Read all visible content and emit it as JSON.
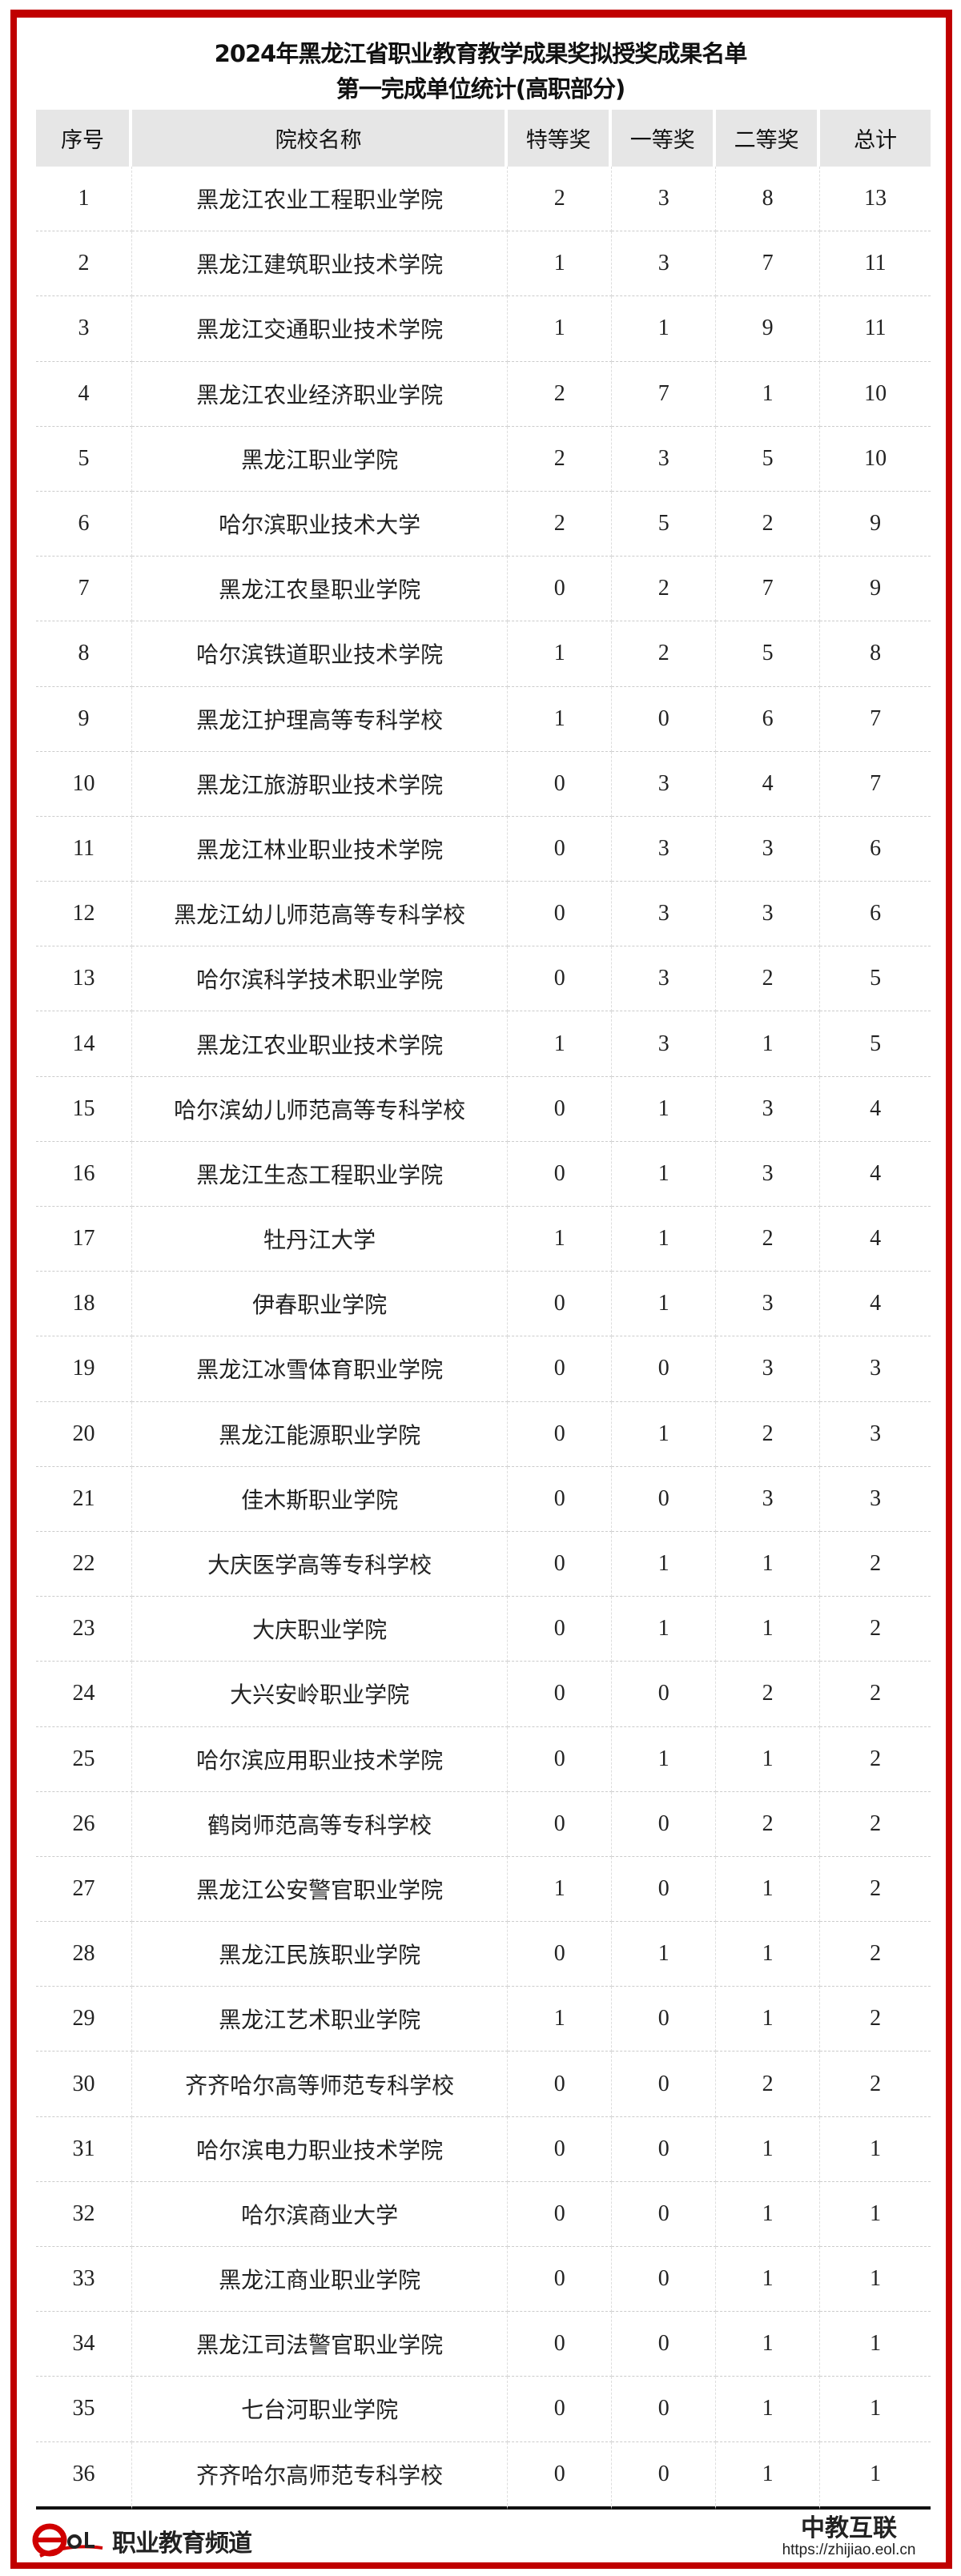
{
  "title": {
    "line1": "2024年黑龙江省职业教育教学成果奖拟授奖成果名单",
    "line2": "第一完成单位统计(高职部分)"
  },
  "table": {
    "headers": [
      "序号",
      "院校名称",
      "特等奖",
      "一等奖",
      "二等奖",
      "总计"
    ],
    "rows": [
      [
        "1",
        "黑龙江农业工程职业学院",
        "2",
        "3",
        "8",
        "13"
      ],
      [
        "2",
        "黑龙江建筑职业技术学院",
        "1",
        "3",
        "7",
        "11"
      ],
      [
        "3",
        "黑龙江交通职业技术学院",
        "1",
        "1",
        "9",
        "11"
      ],
      [
        "4",
        "黑龙江农业经济职业学院",
        "2",
        "7",
        "1",
        "10"
      ],
      [
        "5",
        "黑龙江职业学院",
        "2",
        "3",
        "5",
        "10"
      ],
      [
        "6",
        "哈尔滨职业技术大学",
        "2",
        "5",
        "2",
        "9"
      ],
      [
        "7",
        "黑龙江农垦职业学院",
        "0",
        "2",
        "7",
        "9"
      ],
      [
        "8",
        "哈尔滨铁道职业技术学院",
        "1",
        "2",
        "5",
        "8"
      ],
      [
        "9",
        "黑龙江护理高等专科学校",
        "1",
        "0",
        "6",
        "7"
      ],
      [
        "10",
        "黑龙江旅游职业技术学院",
        "0",
        "3",
        "4",
        "7"
      ],
      [
        "11",
        "黑龙江林业职业技术学院",
        "0",
        "3",
        "3",
        "6"
      ],
      [
        "12",
        "黑龙江幼儿师范高等专科学校",
        "0",
        "3",
        "3",
        "6"
      ],
      [
        "13",
        "哈尔滨科学技术职业学院",
        "0",
        "3",
        "2",
        "5"
      ],
      [
        "14",
        "黑龙江农业职业技术学院",
        "1",
        "3",
        "1",
        "5"
      ],
      [
        "15",
        "哈尔滨幼儿师范高等专科学校",
        "0",
        "1",
        "3",
        "4"
      ],
      [
        "16",
        "黑龙江生态工程职业学院",
        "0",
        "1",
        "3",
        "4"
      ],
      [
        "17",
        "牡丹江大学",
        "1",
        "1",
        "2",
        "4"
      ],
      [
        "18",
        "伊春职业学院",
        "0",
        "1",
        "3",
        "4"
      ],
      [
        "19",
        "黑龙江冰雪体育职业学院",
        "0",
        "0",
        "3",
        "3"
      ],
      [
        "20",
        "黑龙江能源职业学院",
        "0",
        "1",
        "2",
        "3"
      ],
      [
        "21",
        "佳木斯职业学院",
        "0",
        "0",
        "3",
        "3"
      ],
      [
        "22",
        "大庆医学高等专科学校",
        "0",
        "1",
        "1",
        "2"
      ],
      [
        "23",
        "大庆职业学院",
        "0",
        "1",
        "1",
        "2"
      ],
      [
        "24",
        "大兴安岭职业学院",
        "0",
        "0",
        "2",
        "2"
      ],
      [
        "25",
        "哈尔滨应用职业技术学院",
        "0",
        "1",
        "1",
        "2"
      ],
      [
        "26",
        "鹤岗师范高等专科学校",
        "0",
        "0",
        "2",
        "2"
      ],
      [
        "27",
        "黑龙江公安警官职业学院",
        "1",
        "0",
        "1",
        "2"
      ],
      [
        "28",
        "黑龙江民族职业学院",
        "0",
        "1",
        "1",
        "2"
      ],
      [
        "29",
        "黑龙江艺术职业学院",
        "1",
        "0",
        "1",
        "2"
      ],
      [
        "30",
        "齐齐哈尔高等师范专科学校",
        "0",
        "0",
        "2",
        "2"
      ],
      [
        "31",
        "哈尔滨电力职业技术学院",
        "0",
        "0",
        "1",
        "1"
      ],
      [
        "32",
        "哈尔滨商业大学",
        "0",
        "0",
        "1",
        "1"
      ],
      [
        "33",
        "黑龙江商业职业学院",
        "0",
        "0",
        "1",
        "1"
      ],
      [
        "34",
        "黑龙江司法警官职业学院",
        "0",
        "0",
        "1",
        "1"
      ],
      [
        "35",
        "七台河职业学院",
        "0",
        "0",
        "1",
        "1"
      ],
      [
        "36",
        "齐齐哈尔高师范专科学校",
        "0",
        "0",
        "1",
        "1"
      ]
    ]
  },
  "footer": {
    "logo_text": "职业教育频道",
    "logo_mark": "eol",
    "brand": "中教互联",
    "url": "https://zhijiao.eol.cn"
  },
  "colors": {
    "frame": "#c00000",
    "header_bg": "#e6e6e6"
  }
}
